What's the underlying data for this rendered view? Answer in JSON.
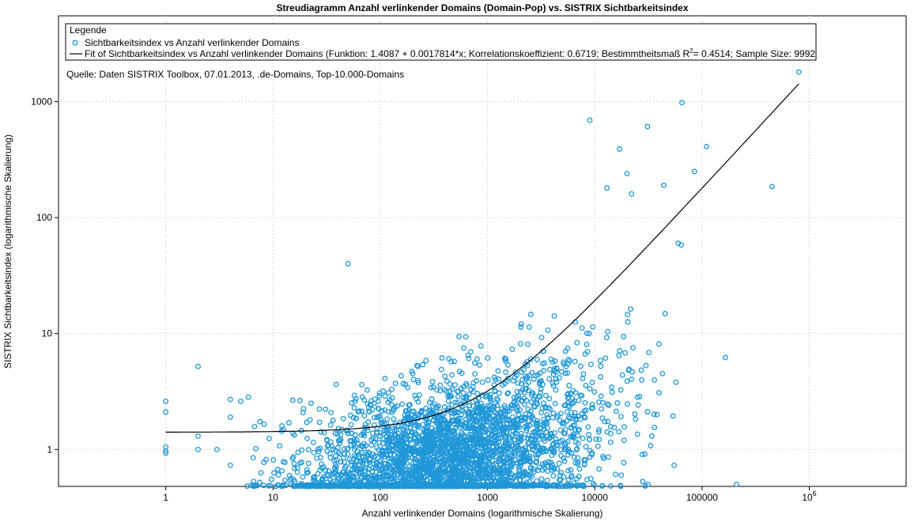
{
  "chart_data": {
    "type": "scatter",
    "title": "Streudiagramm Anzahl verlinkender Domains (Domain-Pop) vs. SISTRIX Sichtbarkeitsindex",
    "xlabel": "Anzahl verlinkender Domains (logarithmische Skalierung)",
    "ylabel": "SISTRIX Sichtbarkeitsindex (logarithmische Skalierung)",
    "xscale": "log",
    "yscale": "log",
    "xlim": [
      0.1,
      8000000
    ],
    "ylim": [
      0.48,
      5500
    ],
    "grid": true,
    "x_ticks": [
      {
        "value": 1,
        "label": "1",
        "exp": ""
      },
      {
        "value": 10,
        "label": "10",
        "exp": ""
      },
      {
        "value": 100,
        "label": "100",
        "exp": ""
      },
      {
        "value": 1000,
        "label": "1000",
        "exp": ""
      },
      {
        "value": 10000,
        "label": "10000",
        "exp": ""
      },
      {
        "value": 100000,
        "label": "100000",
        "exp": ""
      },
      {
        "value": 1000000,
        "label": "10",
        "exp": "6"
      }
    ],
    "y_ticks": [
      {
        "value": 1,
        "label": "1"
      },
      {
        "value": 10,
        "label": "10"
      },
      {
        "value": 100,
        "label": "100"
      },
      {
        "value": 1000,
        "label": "1000"
      }
    ],
    "legend": {
      "title": "Legende",
      "placement": "top-left",
      "entries": [
        {
          "label": "Sichtbarkeitsindex vs Anzahl verlinkender Domains",
          "marker": "circle"
        },
        {
          "label_pre": "Fit of Sichtbarkeitsindex vs Anzahl verlinkender Domains (Funktion: 1.4087 + 0.0017814*x; Korrelationskoeffizient: 0.6719; Bestimmtheitsmaß R",
          "label_sup": "2",
          "label_post": "= 0.4514; Sample Size: 9992",
          "marker": "line"
        }
      ]
    },
    "annotation": "Quelle: Daten SISTRIX Toolbox, 07.01.2013, .de-Domains, Top-10.000-Domains",
    "fit": {
      "intercept": 1.4087,
      "slope": 0.0017814,
      "x_range": [
        1,
        800000
      ]
    },
    "series": [
      {
        "name": "Sichtbarkeitsindex vs Anzahl verlinkender Domains",
        "color": "#1f97d8",
        "sample_size": 9992,
        "outliers": [
          [
            800000,
            1800
          ],
          [
            65000,
            980
          ],
          [
            9000,
            690
          ],
          [
            31000,
            610
          ],
          [
            110000,
            410
          ],
          [
            17000,
            390
          ],
          [
            44000,
            190
          ],
          [
            450000,
            185
          ],
          [
            165000,
            6.2
          ],
          [
            210000,
            0.5
          ],
          [
            50,
            40
          ],
          [
            2,
            5.2
          ],
          [
            1,
            2.6
          ],
          [
            1,
            2.1
          ],
          [
            1,
            1.05
          ],
          [
            1,
            0.97
          ],
          [
            1,
            0.93
          ],
          [
            2,
            1.3
          ],
          [
            2,
            1.0
          ],
          [
            3,
            1.0
          ],
          [
            4,
            2.7
          ],
          [
            5,
            2.6
          ],
          [
            4,
            1.9
          ],
          [
            4,
            0.73
          ],
          [
            28000,
            0.53
          ],
          [
            55000,
            0.73
          ],
          [
            57000,
            3.8
          ],
          [
            30000,
            5.3
          ],
          [
            38000,
            2.0
          ],
          [
            34000,
            1.3
          ],
          [
            36000,
            1.55
          ],
          [
            60000,
            60
          ],
          [
            64000,
            58
          ],
          [
            85000,
            250
          ],
          [
            20000,
            240
          ],
          [
            13000,
            180
          ],
          [
            22000,
            160
          ]
        ]
      }
    ]
  }
}
